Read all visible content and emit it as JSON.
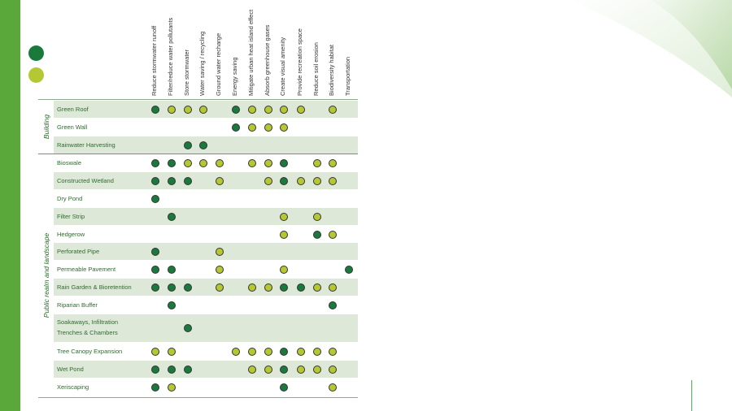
{
  "legend": {
    "dark_color": "#1a7a3c",
    "light_color": "#b5c833"
  },
  "sections": {
    "building": "Building",
    "public": "Public realm and landscape"
  },
  "columns": [
    "Reduce stormwater runoff",
    "Filter/reduce water pollutants",
    "Store stormwater",
    "Water saving / recycling",
    "Ground water recharge",
    "Energy saving",
    "Mitigate urban heat island effect",
    "Absorb greenhouse gases",
    "Create visual amenity",
    "Provide recreation space",
    "Reduce soil erosion",
    "Biodiversity habitat",
    "Transportation"
  ],
  "rows": [
    {
      "label": "Green Roof",
      "cells": [
        "D",
        "L",
        "L",
        "L",
        "",
        "D",
        "L",
        "L",
        "L",
        "L",
        "",
        "L",
        ""
      ]
    },
    {
      "label": "Green Wall",
      "cells": [
        "",
        "",
        "",
        "",
        "",
        "D",
        "L",
        "L",
        "L",
        "",
        "",
        "",
        ""
      ]
    },
    {
      "label": "Rainwater Harvesting",
      "cells": [
        "",
        "",
        "D",
        "D",
        "",
        "",
        "",
        "",
        "",
        "",
        "",
        "",
        ""
      ]
    },
    {
      "label": "Bioswale",
      "cells": [
        "D",
        "D",
        "L",
        "L",
        "L",
        "",
        "L",
        "L",
        "D",
        "",
        "L",
        "L",
        ""
      ]
    },
    {
      "label": "Constructed Wetland",
      "cells": [
        "D",
        "D",
        "D",
        "",
        "L",
        "",
        "",
        "L",
        "D",
        "L",
        "L",
        "L",
        ""
      ]
    },
    {
      "label": "Dry Pond",
      "cells": [
        "D",
        "",
        "",
        "",
        "",
        "",
        "",
        "",
        "",
        "",
        "",
        "",
        ""
      ]
    },
    {
      "label": "Filter Strip",
      "cells": [
        "",
        "D",
        "",
        "",
        "",
        "",
        "",
        "",
        "L",
        "",
        "L",
        "",
        ""
      ]
    },
    {
      "label": "Hedgerow",
      "cells": [
        "",
        "",
        "",
        "",
        "",
        "",
        "",
        "",
        "L",
        "",
        "D",
        "L",
        ""
      ]
    },
    {
      "label": "Perforated Pipe",
      "cells": [
        "D",
        "",
        "",
        "",
        "L",
        "",
        "",
        "",
        "",
        "",
        "",
        "",
        ""
      ]
    },
    {
      "label": "Permeable Pavement",
      "cells": [
        "D",
        "D",
        "",
        "",
        "L",
        "",
        "",
        "",
        "L",
        "",
        "",
        "",
        "D"
      ]
    },
    {
      "label": "Rain Garden & Bioretention",
      "cells": [
        "D",
        "D",
        "D",
        "",
        "L",
        "",
        "L",
        "L",
        "D",
        "D",
        "L",
        "L",
        ""
      ]
    },
    {
      "label": "Riparian Buffer",
      "cells": [
        "",
        "D",
        "",
        "",
        "",
        "",
        "",
        "",
        "",
        "",
        "",
        "D",
        ""
      ]
    },
    {
      "label": "Soakaways, Infiltration",
      "label2": "Trenches & Chambers",
      "cells": [
        "",
        "",
        "D",
        "",
        "",
        "",
        "",
        "",
        "",
        "",
        "",
        "",
        ""
      ]
    },
    {
      "label": "Tree Canopy Expansion",
      "cells": [
        "L",
        "L",
        "",
        "",
        "",
        "L",
        "L",
        "L",
        "D",
        "L",
        "L",
        "L",
        ""
      ]
    },
    {
      "label": "Wet Pond",
      "cells": [
        "D",
        "D",
        "D",
        "",
        "",
        "",
        "L",
        "L",
        "D",
        "L",
        "L",
        "L",
        ""
      ]
    },
    {
      "label": "Xeriscaping",
      "cells": [
        "D",
        "L",
        "",
        "",
        "",
        "",
        "",
        "",
        "D",
        "",
        "",
        "L",
        ""
      ]
    }
  ]
}
